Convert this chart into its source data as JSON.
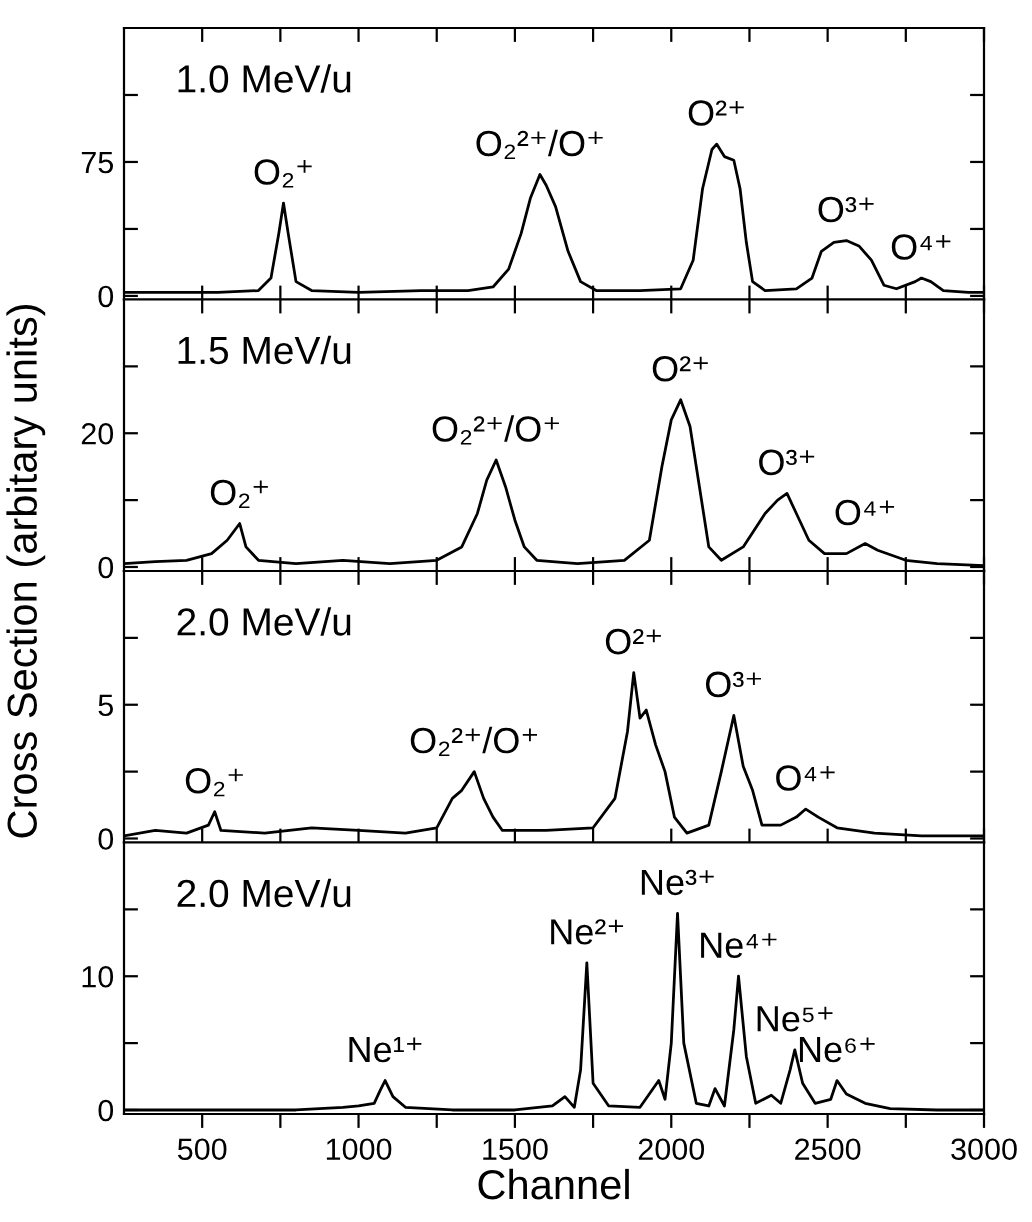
{
  "chart_data": [
    {
      "type": "line",
      "ylabel": "Cross Section (arbitary units)",
      "tick_labels": "y",
      "color": "#000000",
      "line_style": "solid",
      "grid": false,
      "legend": false,
      "x": [
        250,
        400,
        550,
        680,
        720,
        745,
        760,
        775,
        800,
        850,
        1000,
        1200,
        1350,
        1430,
        1480,
        1520,
        1550,
        1580,
        1600,
        1630,
        1670,
        1710,
        1760,
        1900,
        2030,
        2070,
        2100,
        2130,
        2145,
        2170,
        2200,
        2220,
        2240,
        2260,
        2300,
        2400,
        2450,
        2480,
        2520,
        2560,
        2600,
        2640,
        2680,
        2720,
        2780,
        2800,
        2830,
        2870,
        2950,
        3000
      ],
      "values": [
        2,
        2,
        2,
        3,
        10,
        35,
        52,
        35,
        8,
        3,
        2,
        3,
        3,
        5,
        15,
        35,
        55,
        68,
        62,
        50,
        25,
        8,
        3,
        3,
        4,
        20,
        60,
        82,
        85,
        78,
        76,
        60,
        30,
        8,
        3,
        4,
        10,
        25,
        30,
        31,
        28,
        20,
        6,
        4,
        8,
        10,
        8,
        3,
        2,
        2
      ],
      "xlim": [
        250,
        3000
      ],
      "ylim": [
        -2,
        150
      ],
      "xticks": [
        500,
        {
          "value": 750,
          "label": null
        },
        1000,
        {
          "value": 1250,
          "label": null
        },
        1500,
        {
          "value": 1750,
          "label": null
        },
        2000,
        {
          "value": 2250,
          "label": null
        },
        2500,
        {
          "value": 2750,
          "label": null
        },
        3000
      ],
      "yticks": [
        0,
        {
          "value": 37.5,
          "label": null
        },
        75,
        {
          "value": 112.5,
          "label": null
        }
      ],
      "annotations": [
        "1.0 MeV/u",
        {
          "text": "O₂⁺",
          "x": 760,
          "y": 52
        },
        {
          "text": "O₂²⁺/O⁺",
          "x": 1580,
          "y": 68
        },
        {
          "text": "O²⁺",
          "x": 2145,
          "y": 85
        },
        {
          "text": "O³⁺",
          "x": 2560,
          "y": 31
        },
        {
          "text": "O⁴⁺",
          "x": 2800,
          "y": 10
        }
      ]
    },
    {
      "type": "line",
      "tick_labels": "y",
      "color": "#000000",
      "line_style": "solid",
      "grid": false,
      "legend": false,
      "x": [
        250,
        350,
        450,
        530,
        580,
        620,
        640,
        680,
        800,
        950,
        1100,
        1250,
        1330,
        1380,
        1410,
        1440,
        1470,
        1500,
        1530,
        1570,
        1700,
        1850,
        1930,
        1970,
        2000,
        2030,
        2060,
        2090,
        2120,
        2160,
        2230,
        2300,
        2340,
        2370,
        2400,
        2440,
        2490,
        2560,
        2620,
        2660,
        2750,
        2850,
        3000
      ],
      "values": [
        0.5,
        0.8,
        1,
        2,
        4,
        6.5,
        3,
        1,
        0.5,
        1,
        0.5,
        1,
        3,
        8,
        13,
        16,
        12,
        7,
        3,
        1,
        0.5,
        1,
        4,
        15,
        22,
        25,
        21,
        12,
        3,
        1,
        3,
        8,
        10,
        11,
        8,
        4,
        2,
        2,
        3.5,
        2.5,
        1,
        0.5,
        0.2
      ],
      "xlim": [
        250,
        3000
      ],
      "ylim": [
        -0.6,
        40
      ],
      "xticks": [
        500,
        {
          "value": 750,
          "label": null
        },
        1000,
        {
          "value": 1250,
          "label": null
        },
        1500,
        {
          "value": 1750,
          "label": null
        },
        2000,
        {
          "value": 2250,
          "label": null
        },
        2500,
        {
          "value": 2750,
          "label": null
        },
        3000
      ],
      "yticks": [
        0,
        {
          "value": 10,
          "label": null
        },
        20,
        {
          "value": 30,
          "label": null
        }
      ],
      "annotations": [
        "1.5 MeV/u",
        {
          "text": "O₂⁺",
          "x": 620,
          "y": 6.5
        },
        {
          "text": "O₂²⁺/O⁺",
          "x": 1440,
          "y": 16
        },
        {
          "text": "O²⁺",
          "x": 2030,
          "y": 25
        },
        {
          "text": "O³⁺",
          "x": 2370,
          "y": 11
        },
        {
          "text": "O⁴⁺",
          "x": 2620,
          "y": 3.5
        }
      ]
    },
    {
      "type": "line",
      "tick_labels": "y",
      "color": "#000000",
      "line_style": "solid",
      "grid": false,
      "legend": false,
      "x": [
        250,
        350,
        450,
        520,
        540,
        560,
        700,
        850,
        1000,
        1150,
        1250,
        1300,
        1330,
        1370,
        1400,
        1430,
        1460,
        1600,
        1750,
        1820,
        1860,
        1880,
        1900,
        1920,
        1950,
        1980,
        2010,
        2050,
        2120,
        2160,
        2200,
        2230,
        2260,
        2290,
        2350,
        2400,
        2430,
        2470,
        2530,
        2650,
        2800,
        3000
      ],
      "values": [
        0.1,
        0.3,
        0.2,
        0.5,
        1.0,
        0.3,
        0.2,
        0.4,
        0.3,
        0.2,
        0.4,
        1.5,
        1.8,
        2.5,
        1.5,
        0.8,
        0.3,
        0.3,
        0.4,
        1.5,
        4,
        6.2,
        4.5,
        4.8,
        3.5,
        2.5,
        0.8,
        0.2,
        0.5,
        2.5,
        4.6,
        2.7,
        1.8,
        0.5,
        0.5,
        0.8,
        1.1,
        0.8,
        0.4,
        0.2,
        0.1,
        0.1
      ],
      "xlim": [
        250,
        3000
      ],
      "ylim": [
        -0.15,
        10
      ],
      "xticks": [
        500,
        {
          "value": 750,
          "label": null
        },
        1000,
        {
          "value": 1250,
          "label": null
        },
        1500,
        {
          "value": 1750,
          "label": null
        },
        2000,
        {
          "value": 2250,
          "label": null
        },
        2500,
        {
          "value": 2750,
          "label": null
        },
        3000
      ],
      "yticks": [
        0,
        {
          "value": 2.5,
          "label": null
        },
        5,
        {
          "value": 7.5,
          "label": null
        }
      ],
      "annotations": [
        "2.0 MeV/u",
        {
          "text": "O₂⁺",
          "x": 540,
          "y": 1.0
        },
        {
          "text": "O₂²⁺/O⁺",
          "x": 1370,
          "y": 2.5
        },
        {
          "text": "O²⁺",
          "x": 1880,
          "y": 6.2
        },
        {
          "text": "O³⁺",
          "x": 2200,
          "y": 4.6
        },
        {
          "text": "O⁴⁺",
          "x": 2430,
          "y": 1.1
        }
      ]
    },
    {
      "type": "line",
      "xlabel": "Channel",
      "color": "#000000",
      "line_style": "solid",
      "grid": false,
      "legend": false,
      "x": [
        250,
        500,
        800,
        950,
        1000,
        1050,
        1070,
        1085,
        1110,
        1150,
        1300,
        1500,
        1620,
        1660,
        1690,
        1710,
        1730,
        1750,
        1800,
        1900,
        1960,
        1980,
        2000,
        2020,
        2040,
        2080,
        2120,
        2140,
        2170,
        2200,
        2215,
        2240,
        2270,
        2320,
        2350,
        2380,
        2395,
        2420,
        2460,
        2510,
        2530,
        2560,
        2620,
        2700,
        2850,
        3000
      ],
      "values": [
        0,
        0,
        0,
        0.2,
        0.3,
        0.5,
        1.5,
        2.2,
        1,
        0.2,
        0,
        0,
        0.3,
        1,
        0.2,
        3,
        11,
        2,
        0.3,
        0.2,
        2.2,
        0.8,
        5,
        14.7,
        5,
        0.5,
        0.3,
        1.6,
        0.3,
        6,
        10,
        4,
        0.5,
        1.1,
        0.5,
        3,
        4.5,
        2,
        0.5,
        0.8,
        2.2,
        1.2,
        0.5,
        0.1,
        0,
        0
      ],
      "xlim": [
        250,
        3000
      ],
      "ylim": [
        -0.3,
        20
      ],
      "xticks": [
        500,
        {
          "value": 750,
          "label": null
        },
        1000,
        {
          "value": 1250,
          "label": null
        },
        1500,
        {
          "value": 1750,
          "label": null
        },
        2000,
        {
          "value": 2250,
          "label": null
        },
        2500,
        {
          "value": 2750,
          "label": null
        },
        3000
      ],
      "yticks": [
        0,
        {
          "value": 5,
          "label": null
        },
        10,
        {
          "value": 15,
          "label": null
        }
      ],
      "annotations": [
        "2.0 MeV/u",
        {
          "text": "Ne¹⁺",
          "x": 1085,
          "y": 2.2
        },
        {
          "text": "Ne²⁺",
          "x": 1730,
          "y": 11
        },
        {
          "text": "Ne³⁺",
          "x": 2020,
          "y": 14.7
        },
        {
          "text": "Ne⁴⁺",
          "x": 2215,
          "y": 10
        },
        {
          "text": "Ne⁵⁺",
          "x": 2395,
          "y": 4.5
        },
        {
          "text": "Ne⁶⁺",
          "x": 2530,
          "y": 2.2
        }
      ]
    }
  ]
}
